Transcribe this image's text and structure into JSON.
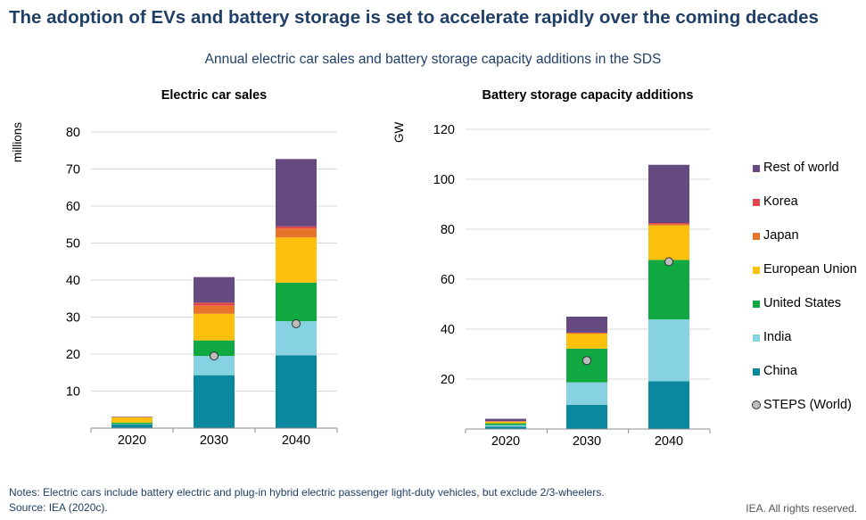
{
  "title": "The adoption of EVs and battery storage is set to accelerate rapidly over the coming decades",
  "subtitle": "Annual electric car sales and battery storage capacity additions in the SDS",
  "notes": {
    "line1": "Notes: Electric cars include battery electric and plug-in hybrid electric passenger light-duty vehicles, but exclude 2/3-wheelers.",
    "line2": "Source: IEA (2020c).",
    "rights": "IEA. All rights reserved."
  },
  "legend": [
    {
      "label": "Rest of world",
      "color": "#644a80",
      "marker": "square"
    },
    {
      "label": "Korea",
      "color": "#e0484e",
      "marker": "square"
    },
    {
      "label": "Japan",
      "color": "#e8732a",
      "marker": "square"
    },
    {
      "label": "European Union",
      "color": "#fcc00d",
      "marker": "square"
    },
    {
      "label": "United States",
      "color": "#10a840",
      "marker": "square"
    },
    {
      "label": "India",
      "color": "#86d2e2",
      "marker": "square"
    },
    {
      "label": "China",
      "color": "#0a899e",
      "marker": "square"
    },
    {
      "label": "STEPS (World)",
      "color": "#bdbdbd",
      "marker": "circle"
    }
  ],
  "chart_data": [
    {
      "type": "bar",
      "stacked": true,
      "title": "Electric car sales",
      "ylabel": "millions",
      "ylim": [
        0,
        80
      ],
      "yticks": [
        10,
        20,
        30,
        40,
        50,
        60,
        70,
        80
      ],
      "grid": true,
      "categories": [
        "2020",
        "2030",
        "2040"
      ],
      "series": [
        {
          "name": "China",
          "color": "#0a899e",
          "values": [
            1.0,
            14.3,
            19.7
          ]
        },
        {
          "name": "India",
          "color": "#86d2e2",
          "values": [
            0.1,
            5.2,
            9.2
          ]
        },
        {
          "name": "United States",
          "color": "#10a840",
          "values": [
            0.4,
            4.2,
            10.4
          ]
        },
        {
          "name": "European Union",
          "color": "#fcc00d",
          "values": [
            1.4,
            7.2,
            12.2
          ]
        },
        {
          "name": "Japan",
          "color": "#e8732a",
          "values": [
            0.1,
            2.2,
            2.4
          ]
        },
        {
          "name": "Korea",
          "color": "#e0484e",
          "values": [
            0.0,
            0.8,
            0.6
          ]
        },
        {
          "name": "Rest of world",
          "color": "#644a80",
          "values": [
            0.1,
            6.9,
            18.2
          ]
        }
      ],
      "steps": [
        null,
        19.5,
        28.2
      ]
    },
    {
      "type": "bar",
      "stacked": true,
      "title": "Battery storage capacity additions",
      "ylabel": "GW",
      "ylim": [
        0,
        120
      ],
      "yticks": [
        20,
        40,
        60,
        80,
        100,
        120
      ],
      "grid": true,
      "categories": [
        "2020",
        "2030",
        "2040"
      ],
      "series": [
        {
          "name": "China",
          "color": "#0a899e",
          "values": [
            1.0,
            9.7,
            19.1
          ]
        },
        {
          "name": "India",
          "color": "#86d2e2",
          "values": [
            0.6,
            9.0,
            24.8
          ]
        },
        {
          "name": "United States",
          "color": "#10a840",
          "values": [
            0.7,
            13.5,
            23.8
          ]
        },
        {
          "name": "European Union",
          "color": "#fcc00d",
          "values": [
            0.6,
            6.0,
            13.8
          ]
        },
        {
          "name": "Japan",
          "color": "#e8732a",
          "values": [
            0.2,
            0.2,
            0.5
          ]
        },
        {
          "name": "Korea",
          "color": "#e0484e",
          "values": [
            0.1,
            0.2,
            0.5
          ]
        },
        {
          "name": "Rest of world",
          "color": "#644a80",
          "values": [
            0.9,
            6.4,
            23.3
          ]
        }
      ],
      "steps": [
        null,
        27.4,
        67.0
      ]
    }
  ]
}
